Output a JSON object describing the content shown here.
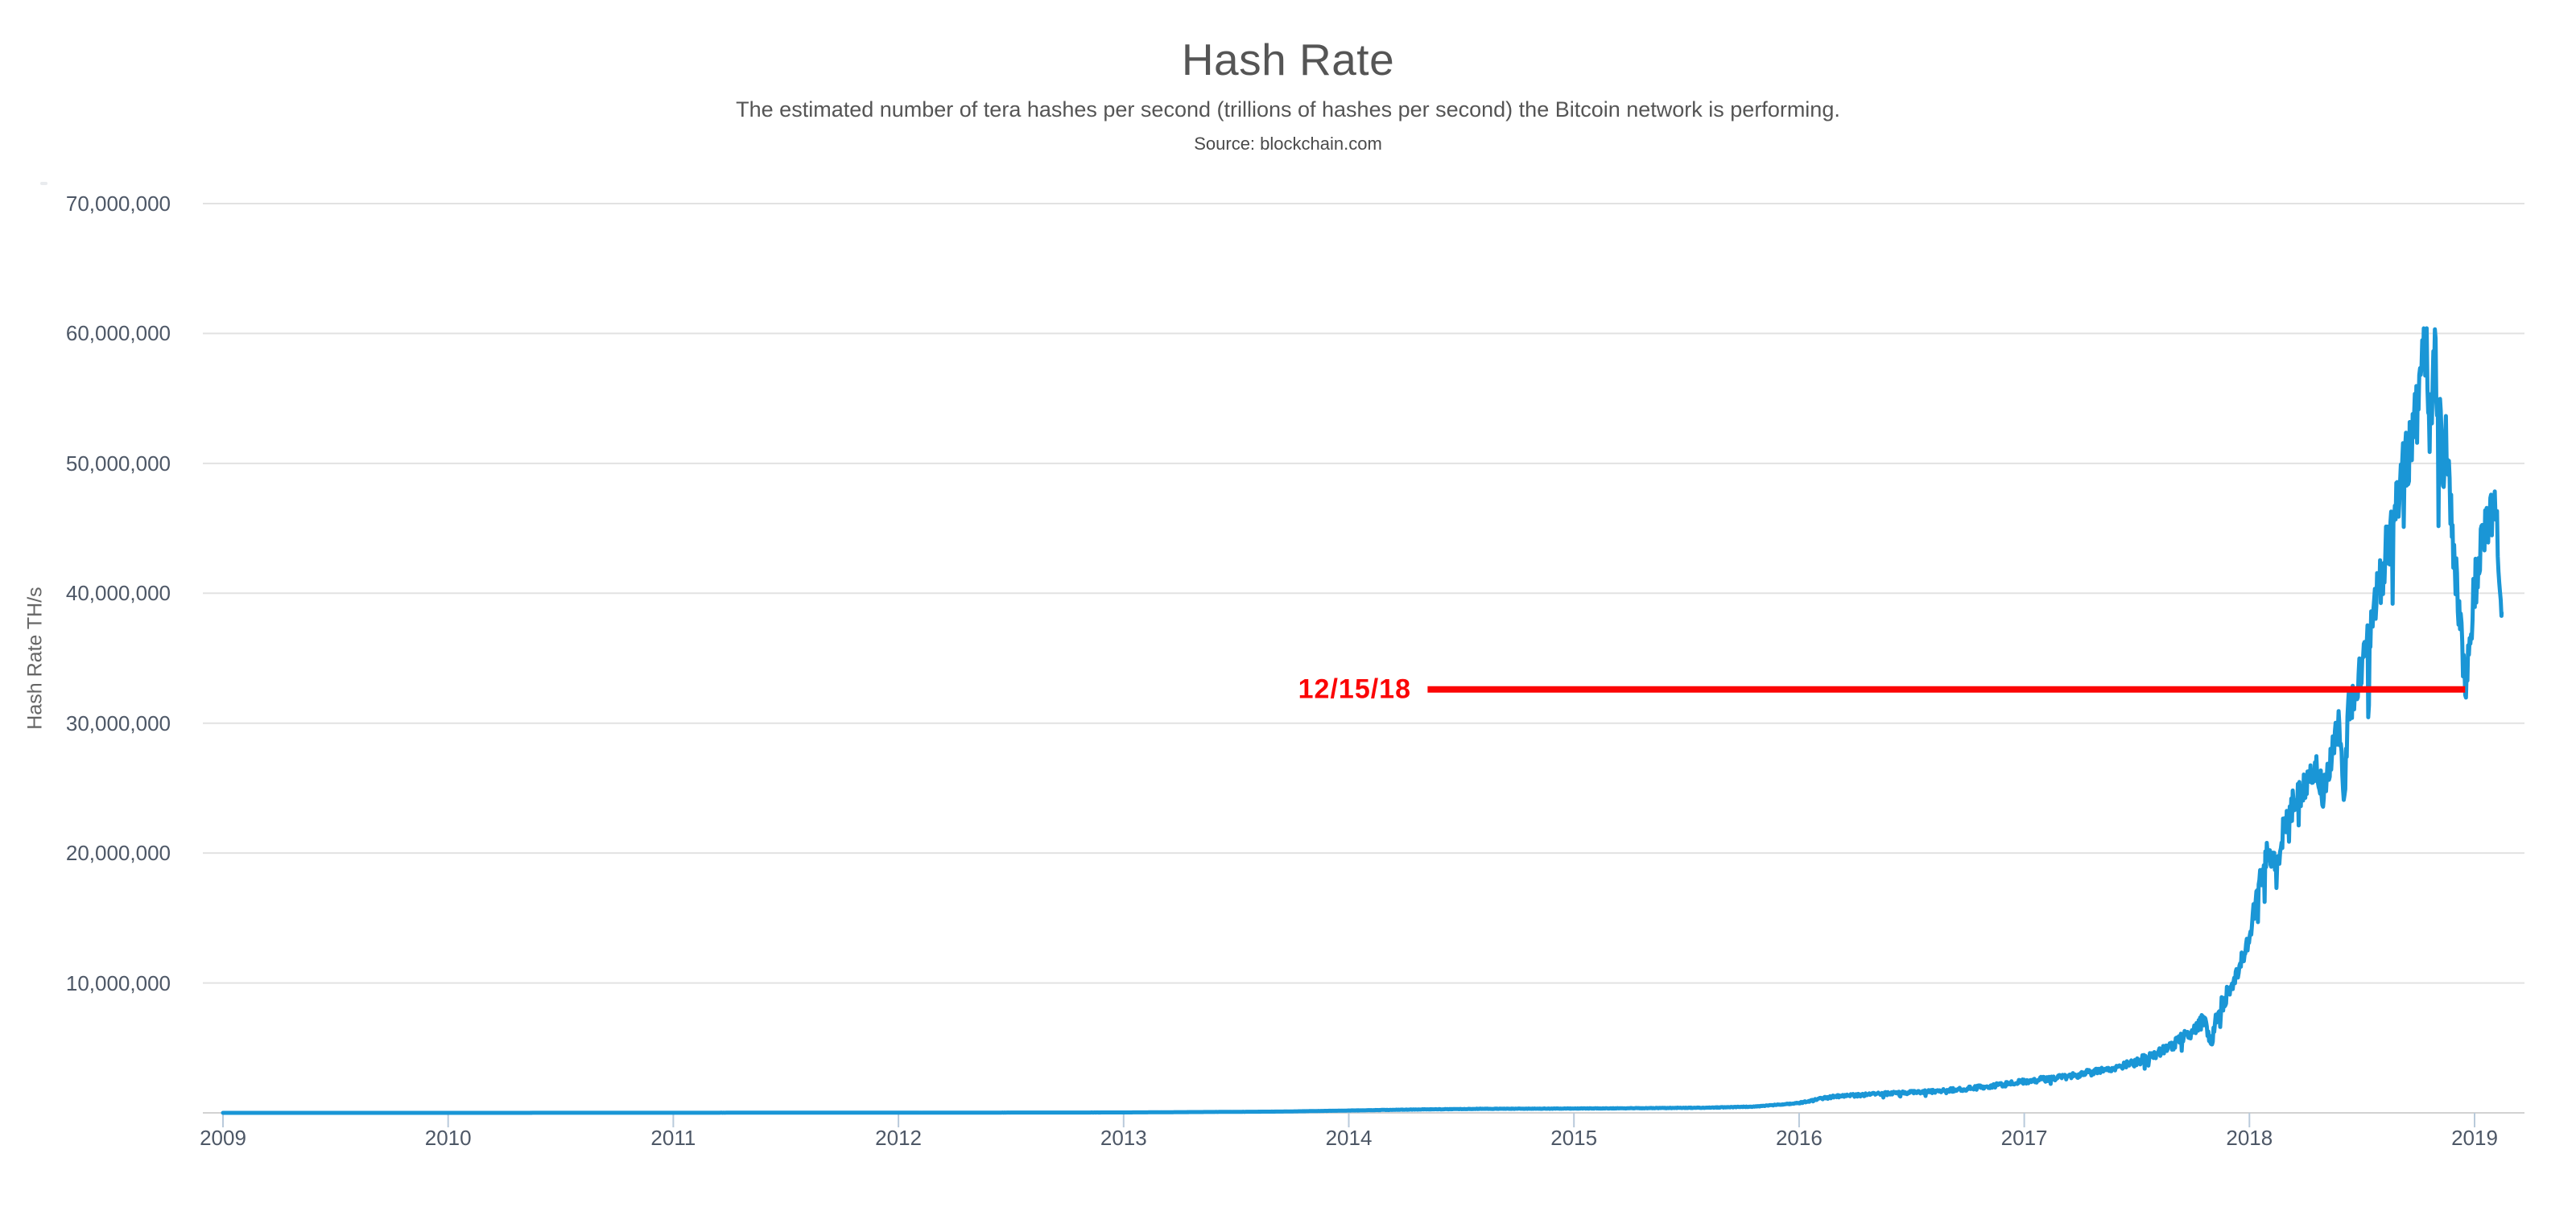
{
  "header": {
    "title": "Hash Rate",
    "subtitle": "The estimated number of tera hashes per second (trillions of hashes per second) the Bitcoin network is performing.",
    "source": "Source: blockchain.com"
  },
  "y_axis": {
    "title": "Hash Rate TH/s",
    "ticks": [
      {
        "value": 70000000,
        "label": "70,000,000"
      },
      {
        "value": 60000000,
        "label": "60,000,000"
      },
      {
        "value": 50000000,
        "label": "50,000,000"
      },
      {
        "value": 40000000,
        "label": "40,000,000"
      },
      {
        "value": 30000000,
        "label": "30,000,000"
      },
      {
        "value": 20000000,
        "label": "20,000,000"
      },
      {
        "value": 10000000,
        "label": "10,000,000"
      }
    ],
    "min": 0,
    "max": 70000000
  },
  "x_axis": {
    "ticks": [
      {
        "value": 2009,
        "label": "2009"
      },
      {
        "value": 2010,
        "label": "2010"
      },
      {
        "value": 2011,
        "label": "2011"
      },
      {
        "value": 2012,
        "label": "2012"
      },
      {
        "value": 2013,
        "label": "2013"
      },
      {
        "value": 2014,
        "label": "2014"
      },
      {
        "value": 2015,
        "label": "2015"
      },
      {
        "value": 2016,
        "label": "2016"
      },
      {
        "value": 2017,
        "label": "2017"
      },
      {
        "value": 2018,
        "label": "2018"
      },
      {
        "value": 2019,
        "label": "2019"
      }
    ]
  },
  "annotation": {
    "label": "12/15/18",
    "value": 32600000,
    "date_x": 2018.958,
    "line_start_x": 2014.35,
    "color": "#fb0505"
  },
  "colors": {
    "line": "#1a96d6",
    "grid": "#e2e2e2",
    "axis": "#d2d2d2",
    "tick": "#b9cadb",
    "label": "#4d5766",
    "red": "#fb0505"
  },
  "chart_data": {
    "type": "line",
    "title": "Hash Rate",
    "xlabel": "",
    "ylabel": "Hash Rate TH/s",
    "xlim": [
      2009,
      2019.22
    ],
    "ylim": [
      0,
      70000000
    ],
    "grid": true,
    "legend": false,
    "annotation_line": {
      "label": "12/15/18",
      "y": 32600000,
      "x_end": 2018.958
    },
    "series": [
      {
        "name": "bitcoin-network-hash-rate-th-s",
        "points": [
          [
            2009.0,
            1
          ],
          [
            2010.0,
            200
          ],
          [
            2011.0,
            8000
          ],
          [
            2012.0,
            14000
          ],
          [
            2013.0,
            30000
          ],
          [
            2013.7,
            100000
          ],
          [
            2014.0,
            180000
          ],
          [
            2014.3,
            260000
          ],
          [
            2014.6,
            310000
          ],
          [
            2015.0,
            335000
          ],
          [
            2015.3,
            360000
          ],
          [
            2015.6,
            400000
          ],
          [
            2015.8,
            480000
          ],
          [
            2016.0,
            750000
          ],
          [
            2016.15,
            1250000
          ],
          [
            2016.35,
            1450000
          ],
          [
            2016.55,
            1600000
          ],
          [
            2016.75,
            1850000
          ],
          [
            2017.0,
            2400000
          ],
          [
            2017.25,
            2950000
          ],
          [
            2017.5,
            3900000
          ],
          [
            2017.62,
            4800000
          ],
          [
            2017.72,
            5900000
          ],
          [
            2017.8,
            7200000
          ],
          [
            2017.83,
            5300000
          ],
          [
            2017.86,
            7900000
          ],
          [
            2017.93,
            10000000
          ],
          [
            2018.0,
            13500000
          ],
          [
            2018.04,
            17500000
          ],
          [
            2018.08,
            20000000
          ],
          [
            2018.12,
            19000000
          ],
          [
            2018.16,
            22500000
          ],
          [
            2018.2,
            24000000
          ],
          [
            2018.25,
            25500000
          ],
          [
            2018.3,
            26500000
          ],
          [
            2018.33,
            24500000
          ],
          [
            2018.36,
            27500000
          ],
          [
            2018.4,
            30000000
          ],
          [
            2018.42,
            23500000
          ],
          [
            2018.44,
            31000000
          ],
          [
            2018.48,
            33500000
          ],
          [
            2018.52,
            36000000
          ],
          [
            2018.56,
            39000000
          ],
          [
            2018.6,
            42500000
          ],
          [
            2018.64,
            45500000
          ],
          [
            2018.68,
            49000000
          ],
          [
            2018.72,
            52000000
          ],
          [
            2018.75,
            54500000
          ],
          [
            2018.77,
            57500000
          ],
          [
            2018.785,
            60300000
          ],
          [
            2018.8,
            52500000
          ],
          [
            2018.82,
            58300000
          ],
          [
            2018.84,
            54000000
          ],
          [
            2018.86,
            49500000
          ],
          [
            2018.88,
            52000000
          ],
          [
            2018.9,
            45000000
          ],
          [
            2018.92,
            40500000
          ],
          [
            2018.94,
            36500000
          ],
          [
            2018.958,
            32600000
          ],
          [
            2018.975,
            35500000
          ],
          [
            2018.99,
            38500000
          ],
          [
            2019.01,
            41500000
          ],
          [
            2019.03,
            43500000
          ],
          [
            2019.05,
            44500000
          ],
          [
            2019.07,
            45800000
          ],
          [
            2019.095,
            47400000
          ],
          [
            2019.11,
            42500000
          ],
          [
            2019.12,
            38500000
          ]
        ]
      }
    ]
  }
}
